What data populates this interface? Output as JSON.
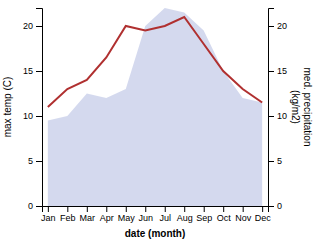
{
  "chart_data": {
    "type": "line",
    "xlabel": "date (month)",
    "ylabel": "max temp (C)",
    "y2label": "med. precipitation\n(kg/m2)",
    "categories": [
      "Jan",
      "Feb",
      "Mar",
      "Apr",
      "May",
      "Jun",
      "Jul",
      "Aug",
      "Sep",
      "Oct",
      "Nov",
      "Dec"
    ],
    "series": [
      {
        "type": "line",
        "color": "#b03030",
        "values": [
          11,
          13,
          14,
          16.5,
          20,
          19.5,
          20,
          21,
          18,
          15,
          13,
          11.5
        ]
      },
      {
        "type": "area",
        "axis": "y2",
        "color": "#c5cce8",
        "values": [
          9.5,
          10,
          12.5,
          12,
          13,
          20,
          22,
          21.5,
          19.5,
          15,
          12,
          11.5
        ]
      }
    ],
    "ylim": [
      0,
      22
    ],
    "yticks": [
      0,
      5,
      10,
      15,
      20
    ],
    "y2lim": [
      0,
      22
    ],
    "y2ticks": [
      0,
      5,
      10,
      15,
      20
    ],
    "grid": false
  }
}
